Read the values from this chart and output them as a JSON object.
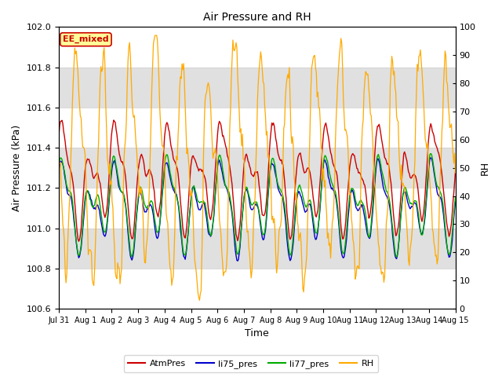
{
  "title": "Air Pressure and RH",
  "xlabel": "Time",
  "ylabel_left": "Air Pressure (kPa)",
  "ylabel_right": "RH",
  "ylim_left": [
    100.6,
    102.0
  ],
  "ylim_right": [
    0,
    100
  ],
  "yticks_left": [
    100.6,
    100.8,
    101.0,
    101.2,
    101.4,
    101.6,
    101.8,
    102.0
  ],
  "yticks_right": [
    0,
    10,
    20,
    30,
    40,
    50,
    60,
    70,
    80,
    90,
    100
  ],
  "xtick_labels": [
    "Jul 31",
    "Aug 1",
    "Aug 2",
    "Aug 3",
    "Aug 4",
    "Aug 5",
    "Aug 6",
    "Aug 7",
    "Aug 8",
    "Aug 9",
    "Aug 10",
    "Aug 11",
    "Aug 12",
    "Aug 13",
    "Aug 14",
    "Aug 15"
  ],
  "colors": {
    "AtmPres": "#cc0000",
    "li75_pres": "#0000cc",
    "li77_pres": "#00aa00",
    "RH": "#ffaa00"
  },
  "annotation_text": "EE_mixed",
  "annotation_color": "#cc0000",
  "annotation_bg": "#ffff99",
  "plot_bg": "#ffffff",
  "fig_bg": "#ffffff",
  "band_color": "#e0e0e0",
  "grid_color": "#cccccc",
  "seed": 42,
  "n_points": 500
}
